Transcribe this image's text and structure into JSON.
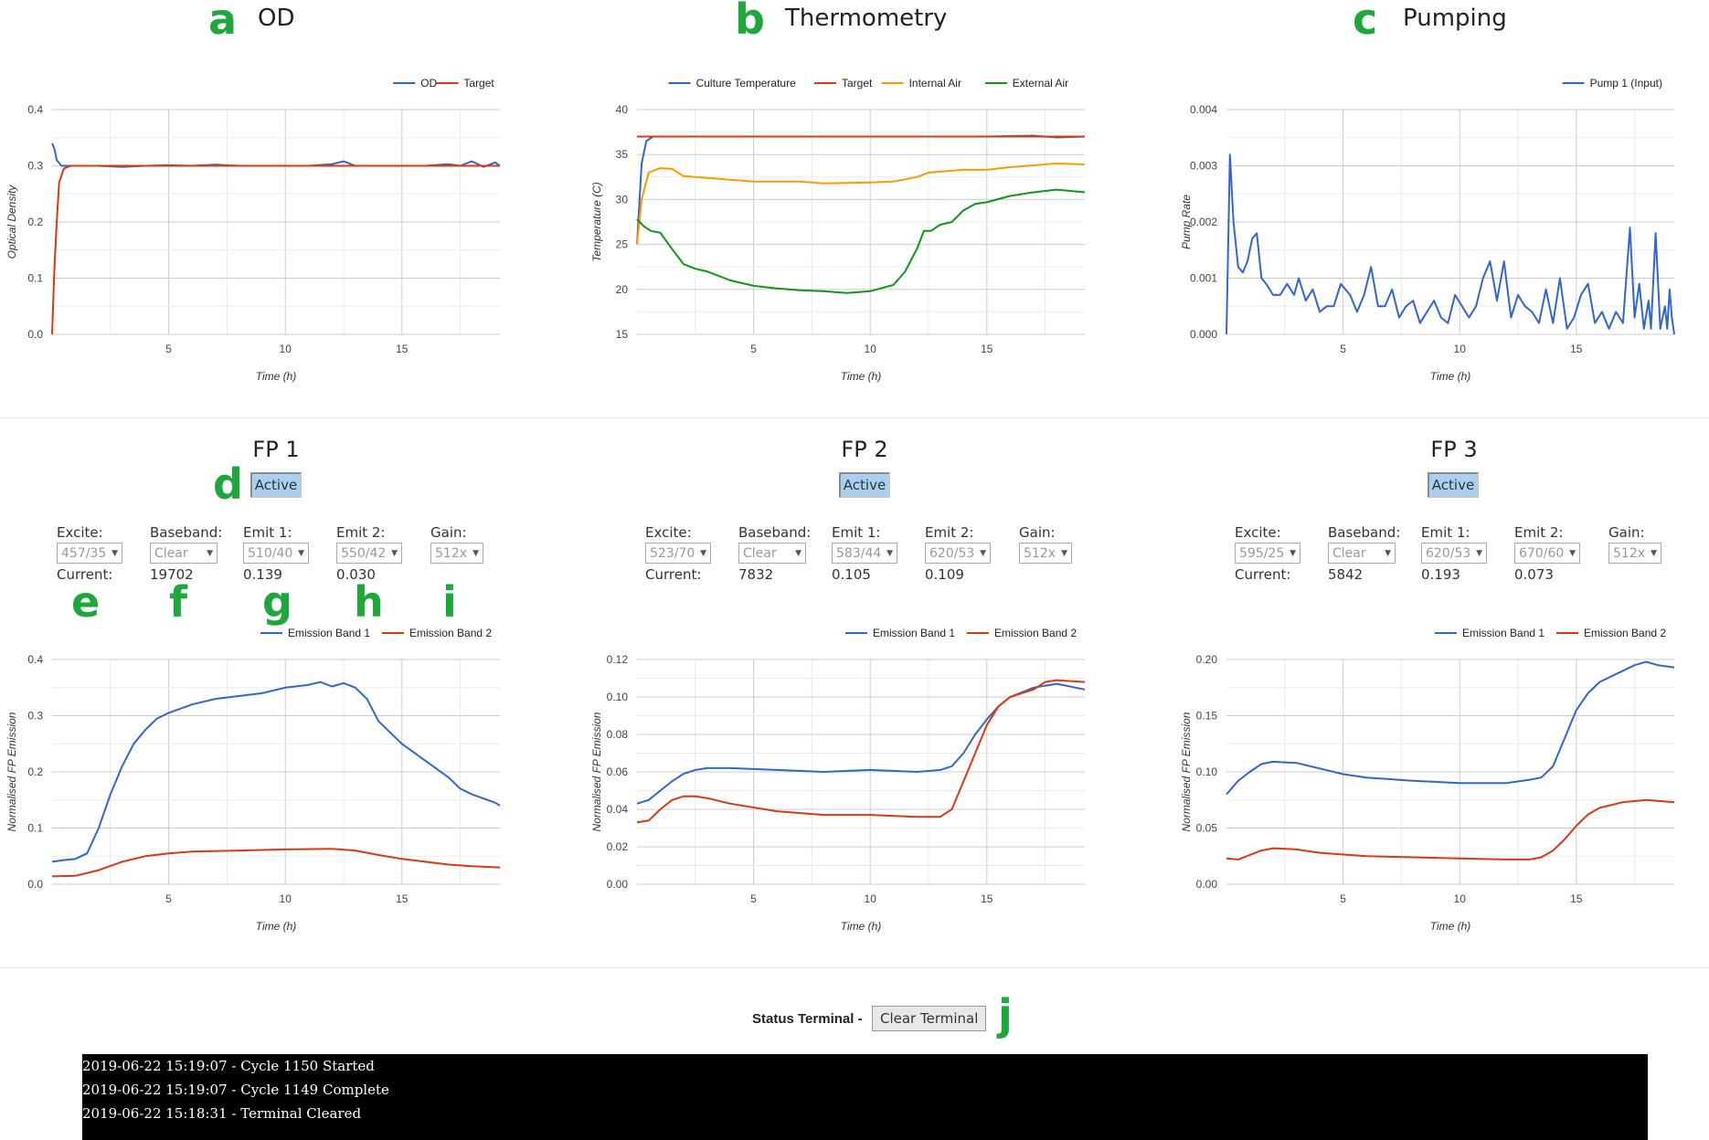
{
  "panels": {
    "a": {
      "letter": "a",
      "title": "OD"
    },
    "b": {
      "letter": "b",
      "title": "Thermometry"
    },
    "c": {
      "letter": "c",
      "title": "Pumping"
    }
  },
  "fp": [
    {
      "title": "FP 1",
      "panel_letter": "d",
      "active_label": "Active",
      "labels": {
        "excite": "Excite:",
        "baseband": "Baseband:",
        "emit1": "Emit 1:",
        "emit2": "Emit 2:",
        "gain": "Gain:",
        "current": "Current:"
      },
      "excite": "457/35",
      "baseband": "Clear",
      "emit1": "510/40",
      "emit2": "550/42",
      "gain": "512x",
      "current_baseband": "19702",
      "current_emit1": "0.139",
      "current_emit2": "0.030"
    },
    {
      "title": "FP 2",
      "active_label": "Active",
      "labels": {
        "excite": "Excite:",
        "baseband": "Baseband:",
        "emit1": "Emit 1:",
        "emit2": "Emit 2:",
        "gain": "Gain:",
        "current": "Current:"
      },
      "excite": "523/70",
      "baseband": "Clear",
      "emit1": "583/44",
      "emit2": "620/53",
      "gain": "512x",
      "current_baseband": "7832",
      "current_emit1": "0.105",
      "current_emit2": "0.109"
    },
    {
      "title": "FP 3",
      "active_label": "Active",
      "labels": {
        "excite": "Excite:",
        "baseband": "Baseband:",
        "emit1": "Emit 1:",
        "emit2": "Emit 2:",
        "gain": "Gain:",
        "current": "Current:"
      },
      "excite": "595/25",
      "baseband": "Clear",
      "emit1": "620/53",
      "emit2": "670/60",
      "gain": "512x",
      "current_baseband": "5842",
      "current_emit1": "0.193",
      "current_emit2": "0.073"
    }
  ],
  "fp_letters": {
    "e": "e",
    "f": "f",
    "g": "g",
    "h": "h",
    "i": "i"
  },
  "terminal": {
    "label": "Status Terminal -",
    "clear_button": "Clear Terminal",
    "letter": "j",
    "lines": [
      "2019-06-22 15:19:07 - Cycle 1150 Started",
      "2019-06-22 15:19:07 - Cycle 1149 Complete",
      "2019-06-22 15:18:31 - Terminal Cleared"
    ]
  },
  "chart_data": [
    {
      "id": "od",
      "type": "line",
      "title": "",
      "xlabel": "Time (h)",
      "ylabel": "Optical Density",
      "xlim": [
        0,
        19.2
      ],
      "ylim": [
        0,
        0.4
      ],
      "xticks": [
        5,
        10,
        15
      ],
      "yticks": [
        0.0,
        0.1,
        0.2,
        0.3,
        0.4
      ],
      "ytick_labels": [
        "0.0",
        "0.1",
        "0.2",
        "0.3",
        "0.4"
      ],
      "legend_position": "top-right",
      "series": [
        {
          "name": "OD",
          "color": "#3366cc",
          "x": [
            0,
            0.1,
            0.2,
            0.4,
            0.6,
            1,
            2,
            3,
            4,
            5,
            6,
            7,
            8,
            9,
            10,
            11,
            12,
            12.5,
            13,
            14,
            15,
            16,
            17,
            17.5,
            18,
            18.5,
            19,
            19.2
          ],
          "y": [
            0.34,
            0.33,
            0.31,
            0.3,
            0.3,
            0.3,
            0.3,
            0.298,
            0.3,
            0.301,
            0.3,
            0.302,
            0.3,
            0.3,
            0.3,
            0.3,
            0.303,
            0.308,
            0.3,
            0.3,
            0.3,
            0.3,
            0.303,
            0.3,
            0.308,
            0.298,
            0.306,
            0.3
          ]
        },
        {
          "name": "Target",
          "color": "#dc3912",
          "x": [
            0,
            0.1,
            0.2,
            0.3,
            0.5,
            0.8,
            19.2
          ],
          "y": [
            0.0,
            0.12,
            0.2,
            0.27,
            0.295,
            0.3,
            0.3
          ]
        }
      ]
    },
    {
      "id": "thermo",
      "type": "line",
      "title": "",
      "xlabel": "Time (h)",
      "ylabel": "Temperature (C)",
      "xlim": [
        0,
        19.2
      ],
      "ylim": [
        15,
        40
      ],
      "xticks": [
        5,
        10,
        15
      ],
      "yticks": [
        15,
        20,
        25,
        30,
        35,
        40
      ],
      "ytick_labels": [
        "15",
        "20",
        "25",
        "30",
        "35",
        "40"
      ],
      "legend_position": "top-right",
      "series": [
        {
          "name": "Culture Temperature",
          "color": "#3366cc",
          "x": [
            0,
            0.2,
            0.4,
            0.7,
            1,
            5,
            10,
            15,
            17,
            18,
            19.2
          ],
          "y": [
            25,
            34,
            36.5,
            37,
            37,
            37,
            37,
            37,
            37.1,
            36.9,
            37
          ]
        },
        {
          "name": "Target",
          "color": "#dc3912",
          "x": [
            0,
            19.2
          ],
          "y": [
            37,
            37
          ]
        },
        {
          "name": "Internal Air",
          "color": "#ff9900",
          "x": [
            0,
            0.2,
            0.5,
            1,
            1.5,
            2,
            3,
            5,
            7,
            8,
            10,
            11,
            12,
            12.5,
            14,
            15,
            16,
            17,
            18,
            19.2
          ],
          "y": [
            25,
            30,
            33,
            33.5,
            33.4,
            32.6,
            32.4,
            32.0,
            32.0,
            31.8,
            31.9,
            32.0,
            32.5,
            33.0,
            33.3,
            33.3,
            33.6,
            33.8,
            34.0,
            33.9
          ]
        },
        {
          "name": "External Air",
          "color": "#109618",
          "x": [
            0,
            0.3,
            0.6,
            1,
            1.5,
            2,
            2.5,
            3,
            4,
            5,
            6,
            7,
            8,
            9,
            10,
            11,
            11.5,
            12,
            12.3,
            12.6,
            13,
            13.5,
            14,
            14.5,
            15,
            16,
            17,
            18,
            19.2
          ],
          "y": [
            27.8,
            27,
            26.5,
            26.3,
            24.5,
            22.8,
            22.3,
            22.0,
            21.0,
            20.4,
            20.1,
            19.9,
            19.8,
            19.6,
            19.8,
            20.5,
            22,
            24.5,
            26.5,
            26.5,
            27.2,
            27.5,
            28.8,
            29.5,
            29.7,
            30.4,
            30.8,
            31.1,
            30.8
          ]
        }
      ]
    },
    {
      "id": "pumping",
      "type": "line",
      "title": "",
      "xlabel": "Time (h)",
      "ylabel": "Pump Rate",
      "xlim": [
        0,
        19.2
      ],
      "ylim": [
        0,
        0.004
      ],
      "xticks": [
        5,
        10,
        15
      ],
      "yticks": [
        0.0,
        0.001,
        0.002,
        0.003,
        0.004
      ],
      "ytick_labels": [
        "0.000",
        "0.001",
        "0.002",
        "0.003",
        "0.004"
      ],
      "legend_position": "top-right",
      "series": [
        {
          "name": "Pump 1 (Input)",
          "color": "#3366cc",
          "x": [
            0,
            0.15,
            0.3,
            0.5,
            0.7,
            0.9,
            1.1,
            1.3,
            1.5,
            1.7,
            2.0,
            2.3,
            2.6,
            2.9,
            3.1,
            3.4,
            3.7,
            4.0,
            4.3,
            4.6,
            4.9,
            5.1,
            5.3,
            5.6,
            5.9,
            6.2,
            6.5,
            6.8,
            7.1,
            7.4,
            7.7,
            8.0,
            8.3,
            8.6,
            8.9,
            9.2,
            9.5,
            9.8,
            10.1,
            10.4,
            10.7,
            11.0,
            11.3,
            11.6,
            11.9,
            12.2,
            12.5,
            12.8,
            13.1,
            13.4,
            13.7,
            14.0,
            14.3,
            14.6,
            14.9,
            15.2,
            15.5,
            15.8,
            16.1,
            16.4,
            16.7,
            17.0,
            17.3,
            17.5,
            17.7,
            17.9,
            18.1,
            18.2,
            18.4,
            18.6,
            18.8,
            18.9,
            19.0,
            19.1,
            19.2
          ],
          "y": [
            0.0,
            0.0032,
            0.002,
            0.0012,
            0.0011,
            0.0013,
            0.0017,
            0.0018,
            0.001,
            0.0009,
            0.0007,
            0.0007,
            0.0009,
            0.0007,
            0.001,
            0.0006,
            0.0008,
            0.0004,
            0.0005,
            0.0005,
            0.0009,
            0.0008,
            0.0007,
            0.0004,
            0.0007,
            0.0012,
            0.0005,
            0.0005,
            0.0008,
            0.0003,
            0.0005,
            0.0006,
            0.0002,
            0.0004,
            0.0006,
            0.0003,
            0.0002,
            0.0007,
            0.0005,
            0.0003,
            0.0005,
            0.001,
            0.0013,
            0.0006,
            0.0013,
            0.0003,
            0.0007,
            0.0005,
            0.0004,
            0.0002,
            0.0008,
            0.0002,
            0.001,
            0.0001,
            0.0003,
            0.0007,
            0.0009,
            0.0002,
            0.0004,
            0.0001,
            0.0004,
            0.0002,
            0.0019,
            0.0003,
            0.0009,
            0.0001,
            0.0006,
            0.0001,
            0.0018,
            0.0001,
            0.0005,
            0.0001,
            0.0008,
            0.0003,
            0.0
          ]
        }
      ]
    },
    {
      "id": "fp1",
      "type": "line",
      "title": "",
      "xlabel": "Time (h)",
      "ylabel": "Normalised FP Emission",
      "xlim": [
        0,
        19.2
      ],
      "ylim": [
        0,
        0.4
      ],
      "xticks": [
        5,
        10,
        15
      ],
      "yticks": [
        0.0,
        0.1,
        0.2,
        0.3,
        0.4
      ],
      "ytick_labels": [
        "0.0",
        "0.1",
        "0.2",
        "0.3",
        "0.4"
      ],
      "legend_position": "top-right",
      "series": [
        {
          "name": "Emission Band 1",
          "color": "#3366cc",
          "x": [
            0,
            0.5,
            1,
            1.5,
            2,
            2.5,
            3,
            3.5,
            4,
            4.5,
            5,
            6,
            7,
            8,
            9,
            10,
            11,
            11.5,
            12,
            12.5,
            13,
            13.5,
            14,
            15,
            16,
            17,
            17.5,
            18,
            19,
            19.2
          ],
          "y": [
            0.04,
            0.043,
            0.045,
            0.055,
            0.1,
            0.16,
            0.21,
            0.25,
            0.275,
            0.295,
            0.305,
            0.32,
            0.33,
            0.335,
            0.34,
            0.35,
            0.355,
            0.36,
            0.352,
            0.358,
            0.35,
            0.33,
            0.29,
            0.25,
            0.22,
            0.19,
            0.17,
            0.16,
            0.145,
            0.14
          ]
        },
        {
          "name": "Emission Band 2",
          "color": "#dc3912",
          "x": [
            0,
            1,
            2,
            3,
            4,
            5,
            6,
            8,
            10,
            12,
            13,
            14,
            15,
            16,
            17,
            18,
            19.2
          ],
          "y": [
            0.014,
            0.015,
            0.025,
            0.04,
            0.05,
            0.055,
            0.058,
            0.06,
            0.062,
            0.063,
            0.06,
            0.052,
            0.045,
            0.04,
            0.035,
            0.032,
            0.03
          ]
        }
      ]
    },
    {
      "id": "fp2",
      "type": "line",
      "title": "",
      "xlabel": "Time (h)",
      "ylabel": "Normalised FP Emission",
      "xlim": [
        0,
        19.2
      ],
      "ylim": [
        0,
        0.12
      ],
      "xticks": [
        5,
        10,
        15
      ],
      "yticks": [
        0.0,
        0.02,
        0.04,
        0.06,
        0.08,
        0.1,
        0.12
      ],
      "ytick_labels": [
        "0.00",
        "0.02",
        "0.04",
        "0.06",
        "0.08",
        "0.10",
        "0.12"
      ],
      "legend_position": "top-right",
      "series": [
        {
          "name": "Emission Band 1",
          "color": "#3366cc",
          "x": [
            0,
            0.5,
            1,
            1.5,
            2,
            2.5,
            3,
            4,
            6,
            8,
            10,
            12,
            13,
            13.5,
            14,
            14.5,
            15,
            15.5,
            16,
            17,
            18,
            19.2
          ],
          "y": [
            0.043,
            0.045,
            0.05,
            0.055,
            0.059,
            0.061,
            0.062,
            0.062,
            0.061,
            0.06,
            0.061,
            0.06,
            0.061,
            0.063,
            0.07,
            0.08,
            0.088,
            0.095,
            0.1,
            0.105,
            0.107,
            0.104
          ]
        },
        {
          "name": "Emission Band 2",
          "color": "#dc3912",
          "x": [
            0,
            0.5,
            1,
            1.5,
            2,
            2.5,
            3,
            4,
            6,
            8,
            10,
            12,
            13,
            13.5,
            14,
            14.5,
            15,
            15.5,
            16,
            17,
            17.5,
            18,
            19.2
          ],
          "y": [
            0.033,
            0.034,
            0.04,
            0.045,
            0.047,
            0.047,
            0.046,
            0.043,
            0.039,
            0.037,
            0.037,
            0.036,
            0.036,
            0.04,
            0.055,
            0.07,
            0.085,
            0.095,
            0.1,
            0.104,
            0.108,
            0.109,
            0.108
          ]
        }
      ]
    },
    {
      "id": "fp3",
      "type": "line",
      "title": "",
      "xlabel": "Time (h)",
      "ylabel": "Normalised FP Emission",
      "xlim": [
        0,
        19.2
      ],
      "ylim": [
        0,
        0.2
      ],
      "xticks": [
        5,
        10,
        15
      ],
      "yticks": [
        0.0,
        0.05,
        0.1,
        0.15,
        0.2
      ],
      "ytick_labels": [
        "0.00",
        "0.05",
        "0.10",
        "0.15",
        "0.20"
      ],
      "legend_position": "top-right",
      "series": [
        {
          "name": "Emission Band 1",
          "color": "#3366cc",
          "x": [
            0,
            0.5,
            1,
            1.5,
            2,
            3,
            4,
            5,
            6,
            8,
            10,
            12,
            13,
            13.5,
            14,
            14.5,
            15,
            15.5,
            16,
            17,
            17.5,
            18,
            18.5,
            19.2
          ],
          "y": [
            0.08,
            0.092,
            0.1,
            0.107,
            0.109,
            0.108,
            0.103,
            0.098,
            0.095,
            0.092,
            0.09,
            0.09,
            0.093,
            0.095,
            0.105,
            0.13,
            0.155,
            0.17,
            0.18,
            0.19,
            0.195,
            0.198,
            0.195,
            0.193
          ]
        },
        {
          "name": "Emission Band 2",
          "color": "#dc3912",
          "x": [
            0,
            0.5,
            1,
            1.5,
            2,
            3,
            4,
            6,
            8,
            10,
            12,
            13,
            13.5,
            14,
            14.5,
            15,
            15.5,
            16,
            17,
            18,
            19.2
          ],
          "y": [
            0.023,
            0.022,
            0.026,
            0.03,
            0.032,
            0.031,
            0.028,
            0.025,
            0.024,
            0.023,
            0.022,
            0.022,
            0.024,
            0.03,
            0.04,
            0.052,
            0.062,
            0.068,
            0.073,
            0.075,
            0.073
          ]
        }
      ]
    }
  ]
}
